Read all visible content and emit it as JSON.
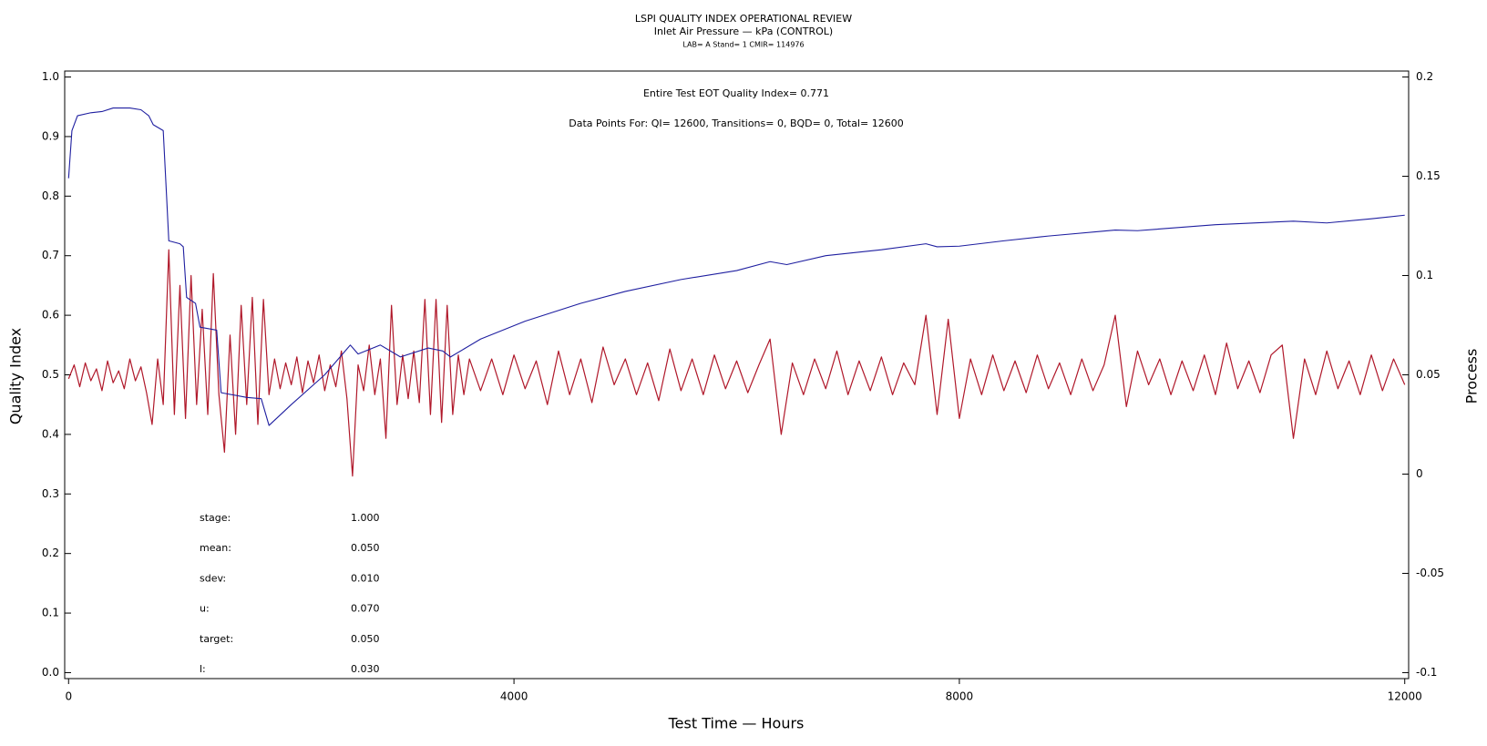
{
  "chart_data": {
    "type": "line",
    "title": "LSPI QUALITY INDEX OPERATIONAL REVIEW",
    "subtitle": "Inlet Air Pressure — kPa (CONTROL)",
    "subtitle2": "LAB= A Stand= 1 CMIR= 114976",
    "annotations": [
      "Entire Test EOT Quality Index=   0.771",
      "Data Points For: QI= 12600, Transitions=     0, BQD=     0, Total= 12600"
    ],
    "stats": [
      {
        "label": "stage:",
        "value": "1.000"
      },
      {
        "label": "mean:",
        "value": "0.050"
      },
      {
        "label": "sdev:",
        "value": "0.010"
      },
      {
        "label": "u:",
        "value": "0.070"
      },
      {
        "label": "target:",
        "value": "0.050"
      },
      {
        "label": "l:",
        "value": "0.030"
      }
    ],
    "x_label": "Test Time — Hours",
    "y_label": "Quality Index",
    "y2_label": "Process",
    "xlim": [
      -35,
      12035
    ],
    "xticks": [
      0,
      4000,
      8000,
      12000
    ],
    "ylim": [
      -0.01,
      1.01
    ],
    "yticks": [
      {
        "value": 0,
        "label": "0.0"
      },
      0.1,
      0.2,
      0.3,
      0.4,
      0.5,
      0.6,
      0.7,
      0.8,
      0.9,
      {
        "value": 1,
        "label": "1.0"
      }
    ],
    "y2lim": [
      -0.103,
      0.203
    ],
    "y2ticks": [
      -0.1,
      -0.05,
      0,
      0.05,
      0.1,
      0.15,
      0.2
    ],
    "series": [
      {
        "color": "#b0182a",
        "axis": "y2",
        "x": [
          0,
          50,
          100,
          150,
          200,
          250,
          300,
          350,
          400,
          450,
          500,
          550,
          600,
          650,
          700,
          750,
          800,
          850,
          900,
          950,
          1000,
          1050,
          1100,
          1150,
          1200,
          1250,
          1300,
          1350,
          1400,
          1450,
          1500,
          1550,
          1600,
          1650,
          1700,
          1750,
          1800,
          1850,
          1900,
          1950,
          2000,
          2050,
          2100,
          2150,
          2200,
          2250,
          2300,
          2350,
          2400,
          2450,
          2500,
          2550,
          2600,
          2650,
          2700,
          2750,
          2800,
          2850,
          2900,
          2950,
          3000,
          3050,
          3100,
          3150,
          3200,
          3250,
          3300,
          3350,
          3400,
          3450,
          3500,
          3550,
          3600,
          3700,
          3800,
          3900,
          4000,
          4100,
          4200,
          4300,
          4400,
          4500,
          4600,
          4700,
          4800,
          4900,
          5000,
          5100,
          5200,
          5300,
          5400,
          5500,
          5600,
          5700,
          5800,
          5900,
          6000,
          6100,
          6200,
          6300,
          6400,
          6500,
          6600,
          6700,
          6800,
          6900,
          7000,
          7100,
          7200,
          7300,
          7400,
          7500,
          7600,
          7700,
          7800,
          7900,
          8000,
          8100,
          8200,
          8300,
          8400,
          8500,
          8600,
          8700,
          8800,
          8900,
          9000,
          9100,
          9200,
          9300,
          9400,
          9500,
          9600,
          9700,
          9800,
          9900,
          10000,
          10100,
          10200,
          10300,
          10400,
          10500,
          10600,
          10700,
          10800,
          10900,
          11000,
          11100,
          11200,
          11300,
          11400,
          11500,
          11600,
          11700,
          11800,
          11900,
          12000
        ],
        "values": [
          0.048,
          0.055,
          0.044,
          0.056,
          0.047,
          0.053,
          0.042,
          0.057,
          0.046,
          0.052,
          0.043,
          0.058,
          0.047,
          0.054,
          0.041,
          0.025,
          0.058,
          0.035,
          0.113,
          0.03,
          0.095,
          0.028,
          0.1,
          0.035,
          0.083,
          0.03,
          0.101,
          0.04,
          0.011,
          0.07,
          0.02,
          0.085,
          0.035,
          0.089,
          0.025,
          0.088,
          0.04,
          0.058,
          0.043,
          0.056,
          0.045,
          0.059,
          0.041,
          0.057,
          0.046,
          0.06,
          0.042,
          0.055,
          0.044,
          0.062,
          0.038,
          -0.001,
          0.055,
          0.042,
          0.065,
          0.04,
          0.058,
          0.018,
          0.085,
          0.035,
          0.06,
          0.038,
          0.062,
          0.036,
          0.088,
          0.03,
          0.088,
          0.026,
          0.085,
          0.03,
          0.06,
          0.04,
          0.058,
          0.042,
          0.058,
          0.04,
          0.06,
          0.043,
          0.057,
          0.035,
          0.062,
          0.04,
          0.058,
          0.036,
          0.064,
          0.045,
          0.058,
          0.04,
          0.056,
          0.037,
          0.063,
          0.042,
          0.058,
          0.04,
          0.06,
          0.043,
          0.057,
          0.041,
          0.055,
          0.068,
          0.02,
          0.056,
          0.04,
          0.058,
          0.043,
          0.062,
          0.04,
          0.057,
          0.042,
          0.059,
          0.04,
          0.056,
          0.045,
          0.08,
          0.03,
          0.078,
          0.028,
          0.058,
          0.04,
          0.06,
          0.042,
          0.057,
          0.041,
          0.06,
          0.043,
          0.056,
          0.04,
          0.058,
          0.042,
          0.055,
          0.08,
          0.034,
          0.062,
          0.045,
          0.058,
          0.04,
          0.057,
          0.042,
          0.06,
          0.04,
          0.066,
          0.043,
          0.057,
          0.041,
          0.06,
          0.065,
          0.018,
          0.058,
          0.04,
          0.062,
          0.043,
          0.057,
          0.04,
          0.06,
          0.042,
          0.058,
          0.045
        ]
      },
      {
        "color": "#1f1fa0",
        "axis": "y",
        "x": [
          0,
          30,
          80,
          200,
          300,
          400,
          550,
          650,
          720,
          760,
          850,
          880,
          900,
          1000,
          1030,
          1060,
          1140,
          1180,
          1330,
          1370,
          1600,
          1730,
          1800,
          2000,
          2300,
          2530,
          2600,
          2800,
          2980,
          3230,
          3360,
          3430,
          3700,
          4100,
          4600,
          5000,
          5500,
          6000,
          6300,
          6450,
          6800,
          7300,
          7700,
          7800,
          8000,
          8400,
          8800,
          9400,
          9600,
          10300,
          11000,
          11300,
          11700,
          12000
        ],
        "values": [
          0.83,
          0.91,
          0.935,
          0.94,
          0.942,
          0.948,
          0.948,
          0.945,
          0.935,
          0.92,
          0.91,
          0.8,
          0.725,
          0.72,
          0.715,
          0.63,
          0.62,
          0.58,
          0.575,
          0.47,
          0.462,
          0.46,
          0.415,
          0.45,
          0.5,
          0.55,
          0.535,
          0.55,
          0.53,
          0.545,
          0.54,
          0.53,
          0.56,
          0.59,
          0.62,
          0.64,
          0.66,
          0.675,
          0.69,
          0.685,
          0.7,
          0.71,
          0.72,
          0.715,
          0.716,
          0.725,
          0.733,
          0.743,
          0.742,
          0.752,
          0.758,
          0.755,
          0.762,
          0.768
        ]
      }
    ]
  }
}
